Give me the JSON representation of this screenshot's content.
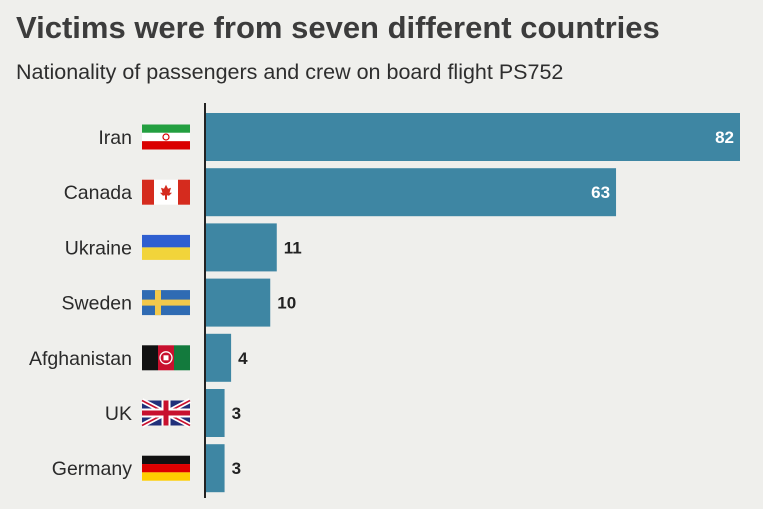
{
  "title": "Victims were from seven different countries",
  "subtitle": "Nationality of passengers and crew on board flight PS752",
  "colors": {
    "background": "#efefec",
    "bar": "#3e86a3",
    "axis": "#222222",
    "label_inside": "#ffffff",
    "label_outside": "#222222"
  },
  "chart_data": {
    "type": "bar",
    "orientation": "horizontal",
    "title": "Victims were from seven different countries",
    "subtitle": "Nationality of passengers and crew on board flight PS752",
    "categories": [
      "Iran",
      "Canada",
      "Ukraine",
      "Sweden",
      "Afghanistan",
      "UK",
      "Germany"
    ],
    "values": [
      82,
      63,
      11,
      10,
      4,
      3,
      3
    ],
    "flags": [
      "iran-flag-icon",
      "canada-flag-icon",
      "ukraine-flag-icon",
      "sweden-flag-icon",
      "afghanistan-flag-icon",
      "uk-flag-icon",
      "germany-flag-icon"
    ],
    "xlim": [
      0,
      82
    ],
    "grid": false,
    "legend": "none",
    "data_labels": true
  }
}
